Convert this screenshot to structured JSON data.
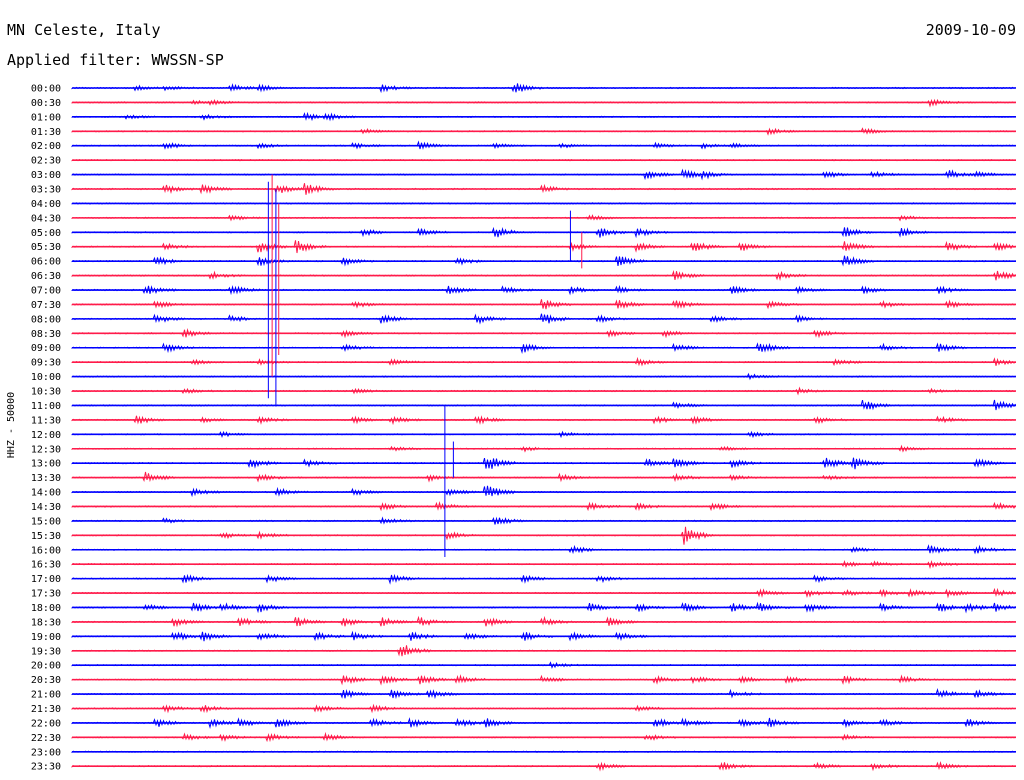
{
  "chart_data": {
    "type": "line",
    "title": "MN Celeste, Italy",
    "date": "2009-10-09",
    "filter": "Applied filter: WWSSN-SP",
    "ylabel": "HHZ - 50000",
    "colors": {
      "even": "#0000ff",
      "odd": "#ff1a4a"
    },
    "rows": [
      {
        "label": "00:00",
        "events": [
          [
            0.07,
            2
          ],
          [
            0.1,
            2
          ],
          [
            0.17,
            3
          ],
          [
            0.2,
            3
          ],
          [
            0.33,
            3
          ],
          [
            0.47,
            5
          ]
        ]
      },
      {
        "label": "00:30",
        "events": [
          [
            0.13,
            2
          ],
          [
            0.15,
            2
          ],
          [
            0.91,
            3
          ]
        ]
      },
      {
        "label": "01:00",
        "events": [
          [
            0.06,
            1.5
          ],
          [
            0.14,
            2
          ],
          [
            0.25,
            3
          ],
          [
            0.27,
            3
          ]
        ]
      },
      {
        "label": "01:30",
        "events": [
          [
            0.31,
            2
          ],
          [
            0.74,
            2.5
          ],
          [
            0.84,
            2.5
          ]
        ]
      },
      {
        "label": "02:00",
        "events": [
          [
            0.1,
            3
          ],
          [
            0.2,
            2
          ],
          [
            0.3,
            2
          ],
          [
            0.37,
            3
          ],
          [
            0.45,
            2
          ],
          [
            0.52,
            2
          ],
          [
            0.62,
            2
          ],
          [
            0.67,
            2
          ],
          [
            0.7,
            2
          ]
        ]
      },
      {
        "label": "02:30",
        "events": []
      },
      {
        "label": "03:00",
        "events": [
          [
            0.61,
            4
          ],
          [
            0.65,
            4
          ],
          [
            0.67,
            3
          ],
          [
            0.8,
            3
          ],
          [
            0.85,
            3
          ],
          [
            0.93,
            4
          ],
          [
            0.96,
            3
          ]
        ]
      },
      {
        "label": "03:30",
        "events": [
          [
            0.1,
            4
          ],
          [
            0.14,
            4
          ],
          [
            0.22,
            4
          ],
          [
            0.25,
            5
          ],
          [
            0.5,
            3
          ]
        ]
      },
      {
        "label": "04:00",
        "events": []
      },
      {
        "label": "04:30",
        "events": [
          [
            0.17,
            2
          ],
          [
            0.55,
            2
          ],
          [
            0.88,
            2
          ]
        ]
      },
      {
        "label": "05:00",
        "events": [
          [
            0.31,
            3
          ],
          [
            0.37,
            4
          ],
          [
            0.45,
            5
          ],
          [
            0.56,
            5
          ],
          [
            0.6,
            4
          ],
          [
            0.82,
            5
          ],
          [
            0.88,
            4
          ]
        ]
      },
      {
        "label": "05:30",
        "events": [
          [
            0.1,
            3
          ],
          [
            0.2,
            5
          ],
          [
            0.24,
            6
          ],
          [
            0.53,
            3
          ],
          [
            0.6,
            4
          ],
          [
            0.66,
            5
          ],
          [
            0.71,
            4
          ],
          [
            0.82,
            5
          ],
          [
            0.93,
            4
          ],
          [
            0.98,
            4
          ]
        ]
      },
      {
        "label": "06:00",
        "events": [
          [
            0.09,
            4
          ],
          [
            0.2,
            4
          ],
          [
            0.29,
            3
          ],
          [
            0.41,
            3
          ],
          [
            0.58,
            5
          ],
          [
            0.82,
            6
          ]
        ]
      },
      {
        "label": "06:30",
        "events": [
          [
            0.15,
            3
          ],
          [
            0.64,
            4
          ],
          [
            0.75,
            3
          ],
          [
            0.98,
            5
          ]
        ]
      },
      {
        "label": "07:00",
        "events": [
          [
            0.08,
            5
          ],
          [
            0.17,
            4
          ],
          [
            0.4,
            4
          ],
          [
            0.46,
            3
          ],
          [
            0.53,
            3
          ],
          [
            0.58,
            3
          ],
          [
            0.7,
            4
          ],
          [
            0.77,
            3
          ],
          [
            0.84,
            3
          ],
          [
            0.92,
            3
          ]
        ]
      },
      {
        "label": "07:30",
        "events": [
          [
            0.09,
            3
          ],
          [
            0.3,
            3
          ],
          [
            0.5,
            5
          ],
          [
            0.58,
            4
          ],
          [
            0.64,
            4
          ],
          [
            0.74,
            3
          ],
          [
            0.86,
            3
          ],
          [
            0.93,
            3
          ]
        ]
      },
      {
        "label": "08:00",
        "events": [
          [
            0.09,
            4
          ],
          [
            0.17,
            3
          ],
          [
            0.33,
            4
          ],
          [
            0.43,
            4
          ],
          [
            0.5,
            6
          ],
          [
            0.56,
            3
          ],
          [
            0.68,
            3
          ],
          [
            0.77,
            3
          ]
        ]
      },
      {
        "label": "08:30",
        "events": [
          [
            0.12,
            4
          ],
          [
            0.29,
            3
          ],
          [
            0.57,
            3
          ],
          [
            0.63,
            3
          ],
          [
            0.79,
            3
          ]
        ]
      },
      {
        "label": "09:00",
        "events": [
          [
            0.1,
            4
          ],
          [
            0.29,
            3
          ],
          [
            0.48,
            4
          ],
          [
            0.64,
            3
          ],
          [
            0.73,
            5
          ],
          [
            0.86,
            3
          ],
          [
            0.92,
            4
          ]
        ]
      },
      {
        "label": "09:30",
        "events": [
          [
            0.13,
            2
          ],
          [
            0.2,
            3
          ],
          [
            0.34,
            3
          ],
          [
            0.6,
            3
          ],
          [
            0.81,
            3
          ],
          [
            0.98,
            3
          ]
        ]
      },
      {
        "label": "10:00",
        "events": [
          [
            0.72,
            2
          ]
        ]
      },
      {
        "label": "10:30",
        "events": [
          [
            0.12,
            2
          ],
          [
            0.3,
            2
          ],
          [
            0.77,
            2.5
          ],
          [
            0.91,
            2
          ]
        ]
      },
      {
        "label": "11:00",
        "events": [
          [
            0.64,
            3
          ],
          [
            0.84,
            5
          ],
          [
            0.98,
            5
          ]
        ]
      },
      {
        "label": "11:30",
        "events": [
          [
            0.07,
            4
          ],
          [
            0.14,
            2
          ],
          [
            0.2,
            3
          ],
          [
            0.3,
            3
          ],
          [
            0.34,
            3
          ],
          [
            0.43,
            4
          ],
          [
            0.62,
            3
          ],
          [
            0.66,
            3
          ],
          [
            0.79,
            3
          ],
          [
            0.92,
            3
          ]
        ]
      },
      {
        "label": "12:00",
        "events": [
          [
            0.16,
            2
          ],
          [
            0.52,
            2
          ],
          [
            0.72,
            2
          ]
        ]
      },
      {
        "label": "12:30",
        "events": [
          [
            0.34,
            2
          ],
          [
            0.48,
            2
          ],
          [
            0.69,
            2
          ],
          [
            0.88,
            2
          ]
        ]
      },
      {
        "label": "13:00",
        "events": [
          [
            0.19,
            5
          ],
          [
            0.25,
            3
          ],
          [
            0.44,
            9
          ],
          [
            0.61,
            4
          ],
          [
            0.64,
            5
          ],
          [
            0.7,
            4
          ],
          [
            0.8,
            5
          ],
          [
            0.83,
            5
          ],
          [
            0.96,
            4
          ]
        ]
      },
      {
        "label": "13:30",
        "events": [
          [
            0.08,
            5
          ],
          [
            0.2,
            3
          ],
          [
            0.38,
            3
          ],
          [
            0.52,
            3
          ],
          [
            0.64,
            3
          ],
          [
            0.7,
            3
          ],
          [
            0.8,
            2
          ]
        ]
      },
      {
        "label": "14:00",
        "events": [
          [
            0.13,
            3
          ],
          [
            0.22,
            3
          ],
          [
            0.3,
            3
          ],
          [
            0.4,
            3
          ],
          [
            0.44,
            7
          ]
        ]
      },
      {
        "label": "14:30",
        "events": [
          [
            0.33,
            3
          ],
          [
            0.39,
            3
          ],
          [
            0.55,
            3
          ],
          [
            0.6,
            3
          ],
          [
            0.68,
            3
          ],
          [
            0.98,
            4
          ]
        ]
      },
      {
        "label": "15:00",
        "events": [
          [
            0.1,
            2
          ],
          [
            0.33,
            3
          ],
          [
            0.45,
            4
          ]
        ]
      },
      {
        "label": "15:30",
        "events": [
          [
            0.16,
            3
          ],
          [
            0.2,
            3
          ],
          [
            0.4,
            3
          ],
          [
            0.65,
            9
          ]
        ]
      },
      {
        "label": "16:00",
        "events": [
          [
            0.53,
            4
          ],
          [
            0.83,
            2
          ],
          [
            0.91,
            4
          ],
          [
            0.96,
            3
          ]
        ]
      },
      {
        "label": "16:30",
        "events": [
          [
            0.82,
            2
          ],
          [
            0.85,
            2
          ],
          [
            0.91,
            3
          ]
        ]
      },
      {
        "label": "17:00",
        "events": [
          [
            0.12,
            4
          ],
          [
            0.21,
            3
          ],
          [
            0.34,
            4
          ],
          [
            0.48,
            3
          ],
          [
            0.56,
            3
          ],
          [
            0.79,
            3
          ]
        ]
      },
      {
        "label": "17:30",
        "events": [
          [
            0.73,
            3
          ],
          [
            0.78,
            3
          ],
          [
            0.82,
            3
          ],
          [
            0.86,
            3
          ],
          [
            0.89,
            3
          ],
          [
            0.93,
            3
          ],
          [
            0.98,
            3
          ]
        ]
      },
      {
        "label": "18:00",
        "events": [
          [
            0.08,
            3
          ],
          [
            0.13,
            4
          ],
          [
            0.16,
            4
          ],
          [
            0.2,
            4
          ],
          [
            0.55,
            4
          ],
          [
            0.6,
            4
          ],
          [
            0.65,
            4
          ],
          [
            0.7,
            4
          ],
          [
            0.73,
            4
          ],
          [
            0.78,
            4
          ],
          [
            0.86,
            3
          ],
          [
            0.92,
            4
          ],
          [
            0.95,
            4
          ],
          [
            0.98,
            4
          ]
        ]
      },
      {
        "label": "18:30",
        "events": [
          [
            0.11,
            4
          ],
          [
            0.18,
            4
          ],
          [
            0.24,
            4
          ],
          [
            0.29,
            4
          ],
          [
            0.33,
            4
          ],
          [
            0.37,
            4
          ],
          [
            0.44,
            4
          ],
          [
            0.5,
            4
          ],
          [
            0.57,
            4
          ]
        ]
      },
      {
        "label": "19:00",
        "events": [
          [
            0.11,
            4
          ],
          [
            0.14,
            4
          ],
          [
            0.2,
            4
          ],
          [
            0.26,
            4
          ],
          [
            0.3,
            4
          ],
          [
            0.36,
            4
          ],
          [
            0.42,
            4
          ],
          [
            0.48,
            4
          ],
          [
            0.53,
            4
          ],
          [
            0.58,
            4
          ]
        ]
      },
      {
        "label": "19:30",
        "events": [
          [
            0.35,
            7
          ]
        ]
      },
      {
        "label": "20:00",
        "events": [
          [
            0.51,
            2
          ]
        ]
      },
      {
        "label": "20:30",
        "events": [
          [
            0.29,
            4
          ],
          [
            0.33,
            4
          ],
          [
            0.37,
            4
          ],
          [
            0.41,
            4
          ],
          [
            0.5,
            3
          ],
          [
            0.62,
            3
          ],
          [
            0.66,
            3
          ],
          [
            0.71,
            3
          ],
          [
            0.76,
            3
          ],
          [
            0.82,
            3
          ],
          [
            0.88,
            3
          ]
        ]
      },
      {
        "label": "21:00",
        "events": [
          [
            0.29,
            4
          ],
          [
            0.34,
            4
          ],
          [
            0.38,
            4
          ],
          [
            0.7,
            3
          ],
          [
            0.92,
            4
          ],
          [
            0.96,
            3
          ]
        ]
      },
      {
        "label": "21:30",
        "events": [
          [
            0.1,
            3
          ],
          [
            0.14,
            3
          ],
          [
            0.26,
            3
          ],
          [
            0.32,
            3
          ],
          [
            0.6,
            3
          ]
        ]
      },
      {
        "label": "22:00",
        "events": [
          [
            0.09,
            4
          ],
          [
            0.15,
            4
          ],
          [
            0.18,
            4
          ],
          [
            0.22,
            4
          ],
          [
            0.32,
            4
          ],
          [
            0.36,
            4
          ],
          [
            0.41,
            4
          ],
          [
            0.44,
            4
          ],
          [
            0.62,
            4
          ],
          [
            0.65,
            4
          ],
          [
            0.71,
            4
          ],
          [
            0.74,
            4
          ],
          [
            0.82,
            3
          ],
          [
            0.86,
            3
          ],
          [
            0.95,
            4
          ]
        ]
      },
      {
        "label": "22:30",
        "events": [
          [
            0.12,
            3
          ],
          [
            0.16,
            3
          ],
          [
            0.21,
            3
          ],
          [
            0.27,
            3
          ],
          [
            0.61,
            3
          ],
          [
            0.82,
            2
          ]
        ]
      },
      {
        "label": "23:00",
        "events": []
      },
      {
        "label": "23:30",
        "events": [
          [
            0.56,
            3
          ],
          [
            0.69,
            4
          ],
          [
            0.79,
            3
          ],
          [
            0.85,
            3
          ],
          [
            0.92,
            3
          ]
        ]
      }
    ]
  }
}
